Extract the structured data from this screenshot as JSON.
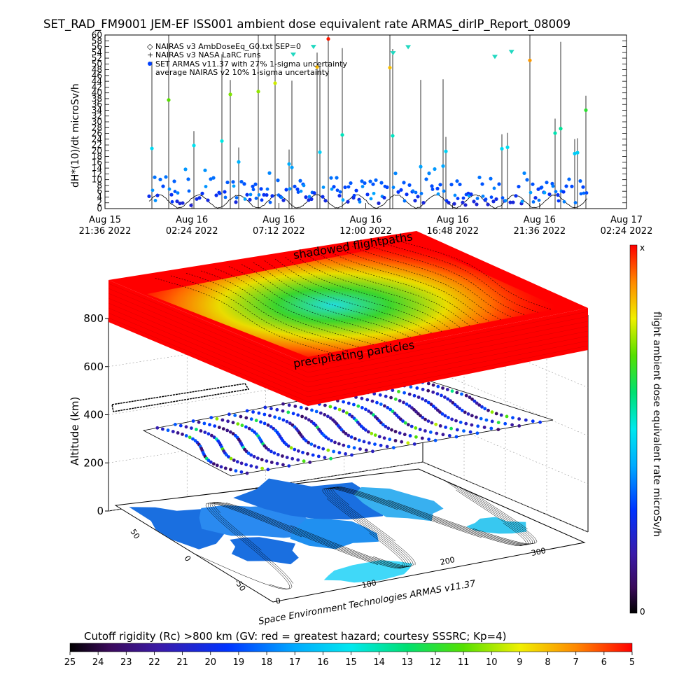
{
  "top_panel": {
    "title": "SET_RAD_FM9001  JEM-EF ISS001 ambient dose equivalent rate ARMAS_dirIP_Report_08009",
    "ylabel": "dH*(10)/dt microSv/h",
    "legend": [
      "NAIRAS v3 AmbDoseEq_G0.txt SEP=0",
      "NAIRAS v3 NASA LaRC runs",
      "SET ARMAS v11.37 with 27% 1-sigma uncertainty",
      "average NAIRAS v2 10% 1-sigma uncertainty"
    ]
  },
  "chart_data": [
    {
      "type": "scatter",
      "title": "SET_RAD_FM9001  JEM-EF ISS001 ambient dose equivalent rate ARMAS_dirIP_Report_08009",
      "xlabel": "",
      "ylabel": "dH*(10)/dt microSv/h",
      "ylim": [
        0,
        60
      ],
      "y_ticks": [
        "0",
        "2",
        "4",
        "6",
        "8",
        "10",
        "12",
        "14",
        "16",
        "18",
        "20",
        "22",
        "24",
        "26",
        "28",
        "30",
        "32",
        "34",
        "36",
        "38",
        "40",
        "42",
        "44",
        "46",
        "48",
        "50",
        "52",
        "54",
        "56",
        "58",
        "60"
      ],
      "x_ticks": [
        {
          "date": "Aug 15",
          "time": "21:36 2022"
        },
        {
          "date": "Aug 16",
          "time": "02:24 2022"
        },
        {
          "date": "Aug 16",
          "time": "07:12 2022"
        },
        {
          "date": "Aug 16",
          "time": "12:00 2022"
        },
        {
          "date": "Aug 16",
          "time": "16:48 2022"
        },
        {
          "date": "Aug 16",
          "time": "21:36 2022"
        },
        {
          "date": "Aug 17",
          "time": "02:24 2022"
        }
      ],
      "xlim": [
        "2022-08-15 21:36",
        "2022-08-17 02:24"
      ],
      "series": [
        {
          "name": "NAIRAS v3 AmbDoseEq_G0.txt SEP=0",
          "marker": "diamond-open",
          "pattern": "orbital oscillation 0-6"
        },
        {
          "name": "NAIRAS v3 NASA LaRC runs",
          "marker": "plus"
        },
        {
          "name": "SET ARMAS v11.37 with 27% 1-sigma uncertainty",
          "marker": "filled-circle",
          "pattern": "mostly 1-12 with spikes to 60"
        },
        {
          "name": "average NAIRAS v2 10% 1-sigma uncertainty",
          "marker": "triangle-cyan"
        }
      ],
      "grid": false,
      "legend_position": "top-left"
    },
    {
      "type": "3d-surface",
      "zlabel": "Altitude (km)",
      "z_ticks": [
        "0",
        "200",
        "400",
        "600",
        "800"
      ],
      "lat_ticks": [
        "-50",
        "0",
        "50"
      ],
      "lon_ticks": [
        "0",
        "100",
        "200",
        "300"
      ],
      "annotations": [
        "shadowed flightpaths",
        "precipitating particles"
      ],
      "credit": "Space Environment Technologies ARMAS v11.37",
      "colorbar": {
        "label": "flight ambient dose equivalent rate microSv/h",
        "top": "x",
        "bottom": "0"
      },
      "bottom_colorbar": {
        "title": "Cutoff rigidity (Rc) >800 km (GV: red = greatest hazard; courtesy SSSRC; Kp=4)",
        "ticks": [
          "25",
          "24",
          "23",
          "22",
          "21",
          "20",
          "19",
          "18",
          "17",
          "16",
          "15",
          "14",
          "13",
          "12",
          "11",
          "10",
          "9",
          "8",
          "7",
          "6",
          "5"
        ]
      }
    }
  ]
}
